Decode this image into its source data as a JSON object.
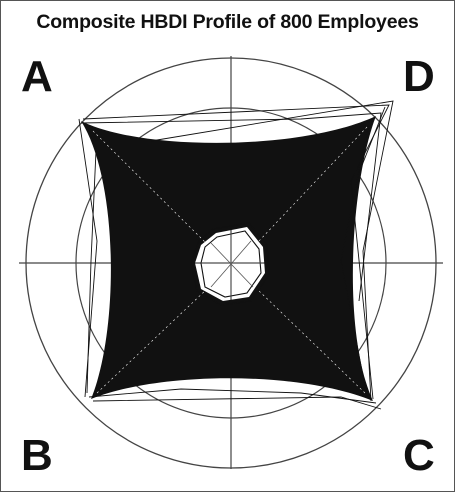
{
  "title": "Composite HBDI Profile of 800 Employees",
  "quadrants": {
    "a": "A",
    "b": "B",
    "c": "C",
    "d": "D"
  },
  "colors": {
    "ink": "#111111",
    "axes": "#444444",
    "background": "#ffffff"
  }
}
